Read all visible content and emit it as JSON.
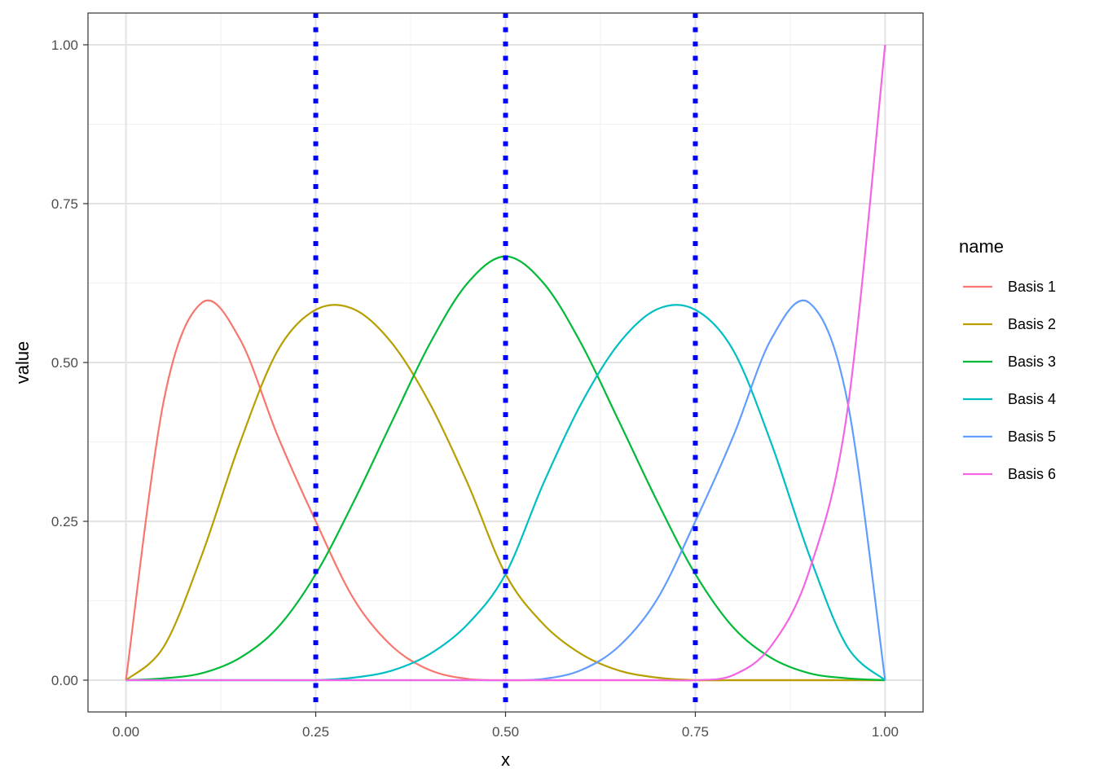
{
  "chart_data": {
    "type": "line",
    "title": "",
    "xlabel": "x",
    "ylabel": "value",
    "xlim": [
      -0.05,
      1.05
    ],
    "ylim": [
      -0.05,
      1.05
    ],
    "x_ticks": [
      0,
      0.25,
      0.5,
      0.75,
      1
    ],
    "x_tick_labels": [
      "0.00",
      "0.25",
      "0.50",
      "0.75",
      "1.00"
    ],
    "y_ticks": [
      0,
      0.25,
      0.5,
      0.75,
      1
    ],
    "y_tick_labels": [
      "0.00",
      "0.25",
      "0.50",
      "0.75",
      "1.00"
    ],
    "grid": true,
    "legend": {
      "title": "name",
      "position": "right"
    },
    "x": [
      0,
      0.05,
      0.1,
      0.15,
      0.2,
      0.25,
      0.3,
      0.35,
      0.4,
      0.45,
      0.5,
      0.55,
      0.6,
      0.65,
      0.7,
      0.75,
      0.8,
      0.85,
      0.9,
      0.95,
      1
    ],
    "series": [
      {
        "name": "Basis 1",
        "color": "#F8766D",
        "values": [
          0,
          0.441,
          0.594,
          0.537,
          0.384,
          0.25,
          0.128,
          0.054,
          0.016,
          0.002,
          0,
          0,
          0,
          0,
          0,
          0,
          0,
          0,
          0,
          0,
          0
        ]
      },
      {
        "name": "Basis 2",
        "color": "#B79F00",
        "values": [
          0,
          0.053,
          0.197,
          0.373,
          0.519,
          0.583,
          0.584,
          0.531,
          0.436,
          0.31,
          0.167,
          0.088,
          0.041,
          0.015,
          0.004,
          0,
          0,
          0,
          0,
          0,
          0
        ]
      },
      {
        "name": "Basis 3",
        "color": "#00BA38",
        "values": [
          0,
          0.003,
          0.011,
          0.035,
          0.083,
          0.167,
          0.281,
          0.406,
          0.529,
          0.625,
          0.667,
          0.625,
          0.529,
          0.406,
          0.281,
          0.167,
          0.083,
          0.035,
          0.011,
          0.003,
          0
        ]
      },
      {
        "name": "Basis 4",
        "color": "#00BFC4",
        "values": [
          0,
          0,
          0,
          0,
          0,
          0,
          0.004,
          0.015,
          0.041,
          0.088,
          0.167,
          0.31,
          0.436,
          0.531,
          0.584,
          0.583,
          0.519,
          0.373,
          0.197,
          0.053,
          0
        ]
      },
      {
        "name": "Basis 5",
        "color": "#619CFF",
        "values": [
          0,
          0,
          0,
          0,
          0,
          0,
          0,
          0,
          0,
          0,
          0,
          0.002,
          0.016,
          0.054,
          0.128,
          0.25,
          0.384,
          0.537,
          0.594,
          0.441,
          0
        ]
      },
      {
        "name": "Basis 6",
        "color": "#F564E3",
        "values": [
          0,
          0,
          0,
          0,
          0,
          0,
          0,
          0,
          0,
          0,
          0,
          0,
          0,
          0,
          0,
          0,
          0.008,
          0.054,
          0.172,
          0.422,
          1
        ]
      }
    ],
    "knots": {
      "values": [
        0.25,
        0.5,
        0.75
      ],
      "color": "#0000FF",
      "style": "dotted"
    }
  }
}
